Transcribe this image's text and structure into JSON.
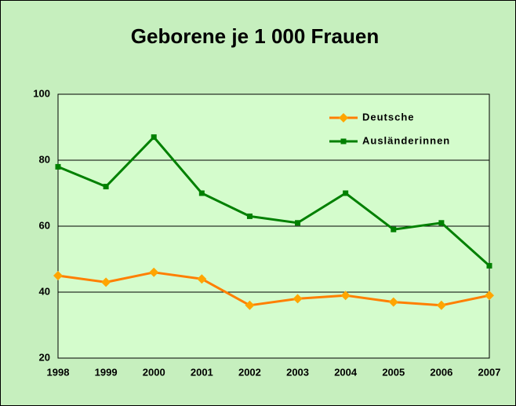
{
  "chart_data": {
    "type": "line",
    "title": "Geborene je 1 000 Frauen",
    "categories": [
      "1998",
      "1999",
      "2000",
      "2001",
      "2002",
      "2003",
      "2004",
      "2005",
      "2006",
      "2007"
    ],
    "series": [
      {
        "name": "Deutsche",
        "color": "#ff7f00",
        "marker_color": "#ffa500",
        "marker": "diamond",
        "values": [
          45,
          43,
          46,
          44,
          36,
          38,
          39,
          37,
          36,
          39
        ]
      },
      {
        "name": "Ausländerinnen",
        "color": "#008000",
        "marker_color": "#008000",
        "marker": "square",
        "values": [
          78,
          72,
          87,
          70,
          63,
          61,
          70,
          59,
          61,
          48
        ]
      }
    ],
    "ylim": [
      20,
      100
    ],
    "yticks": [
      20,
      40,
      60,
      80,
      100
    ],
    "grid": true
  }
}
